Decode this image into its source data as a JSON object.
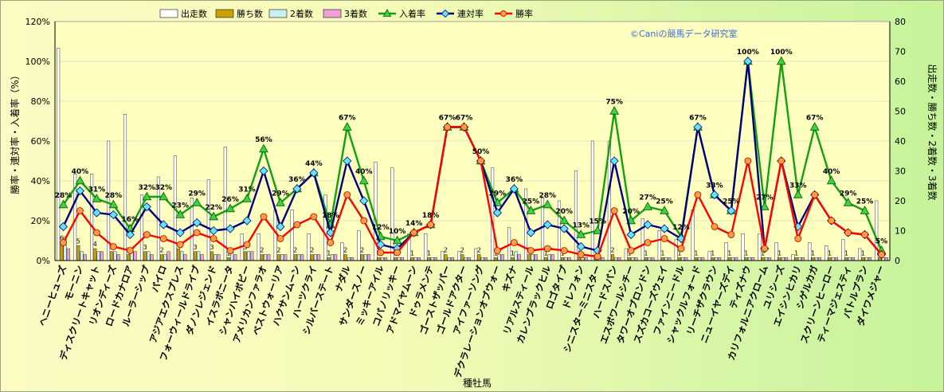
{
  "chart_data": {
    "type": "bar",
    "credit": "©Caniの競馬データ研究室",
    "xlabel": "種牡馬",
    "ylabel_left": "勝率・連対率・入着率（%）",
    "ylabel_right": "出走数・勝ち数・2着数・3着数",
    "ylim_left": [
      0,
      120
    ],
    "ylim_right": [
      0,
      80
    ],
    "yticks_left": [
      "0%",
      "20%",
      "40%",
      "60%",
      "80%",
      "100%",
      "120%"
    ],
    "yticks_right": [
      "0",
      "10",
      "20",
      "30",
      "40",
      "50",
      "60",
      "70",
      "80"
    ],
    "legend": [
      "出走数",
      "勝ち数",
      "2着数",
      "3着数",
      "入着率",
      "連対率",
      "勝率"
    ],
    "colors": {
      "出走数": "#ffffff",
      "勝ち数": "#c8a000",
      "2着数": "#c8f0f0",
      "3着数": "#f0a0d8",
      "入着率": "#10a010",
      "連対率": "#000080",
      "勝率": "#ff0000",
      "plot_bg": "#ffffc0"
    },
    "categories": [
      "ヘニーヒューズ",
      "モーニン",
      "ディスクリートキャット",
      "リオンディーズ",
      "ロードカナロア",
      "ルーラーシップ",
      "パイロ",
      "アジアエクスプレス",
      "フォーウィールドライブ",
      "ダノンレジェンド",
      "イスラボニータ",
      "シャンハイボビー",
      "アメリカンファラオ",
      "ベストウォーリア",
      "ハクサンムーン",
      "ハーツクライ",
      "シルバーステート",
      "ナダル",
      "サンダースノー",
      "ミッキーアイル",
      "コパノリッキー",
      "アドマイヤムーン",
      "ドゥラメンテ",
      "ゴーストザッパー",
      "ゴールドアクター",
      "アイファーソング",
      "デクラレーションオブウォー",
      "キズナ",
      "リアルスティール",
      "カレンブラックヒル",
      "ロゴタイプ",
      "ドレフォン",
      "シニスターミニスター",
      "ハードスパン",
      "エスポワールシチー",
      "タワーオブロンドン",
      "スズカコーズウェイ",
      "ファインニードル",
      "シャックルフォード",
      "リーチザクラウン",
      "ニューイヤーズデイ",
      "ティズナウ",
      "カリフォルニアクローム",
      "ユリシーズ",
      "エイシンヒカリ",
      "シゲルカガ",
      "スクリーンヒーロー",
      "ティーマジェスティ",
      "バトルプラン",
      "ダイワメジャー"
    ],
    "series": [
      {
        "name": "出走数",
        "axis": "right",
        "values": [
          71,
          29,
          29,
          40,
          49,
          22,
          28,
          35,
          21,
          27,
          38,
          9,
          9,
          17,
          17,
          9,
          22,
          6,
          10,
          33,
          31,
          9,
          9,
          3,
          3,
          4,
          31,
          11,
          24,
          21,
          20,
          30,
          40,
          40,
          4,
          14,
          10,
          7,
          17,
          3,
          6,
          9,
          9,
          6,
          2,
          6,
          5,
          7,
          4,
          20
        ]
      },
      {
        "name": "勝ち数",
        "axis": "right",
        "values": [
          6,
          5,
          4,
          3,
          2,
          3,
          2,
          4,
          3,
          3,
          1,
          3,
          2,
          2,
          2,
          2,
          1,
          2,
          2,
          1,
          1,
          1,
          1,
          2,
          2,
          2,
          1,
          1,
          2,
          1,
          1,
          1,
          1,
          2,
          1,
          1,
          1,
          1,
          1,
          1,
          1,
          1,
          1,
          1,
          1,
          1,
          1,
          1,
          1,
          1
        ]
      },
      {
        "name": "2着数",
        "axis": "right",
        "values": [
          8,
          3,
          3,
          3,
          3,
          3,
          2,
          3,
          3,
          2,
          4,
          3,
          2,
          2,
          2,
          2,
          2,
          1,
          2,
          1,
          1,
          1,
          1,
          1,
          1,
          1,
          2,
          3,
          2,
          2,
          1,
          1,
          1,
          1,
          1,
          1,
          1,
          1,
          1,
          1,
          1,
          1,
          1,
          1,
          1,
          1,
          1,
          1,
          1,
          1
        ]
      },
      {
        "name": "3着数",
        "axis": "right",
        "values": [
          4,
          2,
          3,
          2,
          3,
          2,
          3,
          2,
          2,
          2,
          2,
          3,
          2,
          2,
          2,
          2,
          2,
          1,
          2,
          1,
          1,
          1,
          1,
          1,
          1,
          1,
          2,
          2,
          2,
          2,
          1,
          1,
          1,
          1,
          1,
          1,
          1,
          1,
          1,
          1,
          1,
          1,
          1,
          1,
          1,
          1,
          1,
          1,
          1,
          1
        ]
      },
      {
        "name": "入着率",
        "axis": "left",
        "type": "line",
        "values": [
          28,
          40,
          31,
          28,
          16,
          32,
          32,
          23,
          29,
          22,
          26,
          31,
          56,
          29,
          36,
          44,
          18,
          67,
          40,
          12,
          10,
          14,
          18,
          67,
          67,
          50,
          29,
          36,
          25,
          28,
          20,
          13,
          15,
          75,
          20,
          27,
          25,
          12,
          67,
          33,
          25,
          100,
          27,
          100,
          33,
          67,
          40,
          29,
          25,
          5
        ]
      },
      {
        "name": "連対率",
        "axis": "left",
        "type": "line",
        "values": [
          17,
          35,
          24,
          23,
          13,
          27,
          18,
          14,
          19,
          15,
          16,
          20,
          45,
          17,
          36,
          44,
          14,
          50,
          30,
          8,
          6,
          14,
          18,
          67,
          67,
          50,
          24,
          36,
          14,
          18,
          16,
          7,
          5,
          50,
          13,
          18,
          16,
          11,
          67,
          33,
          25,
          100,
          6,
          50,
          17,
          33,
          20,
          14,
          13,
          3
        ]
      },
      {
        "name": "勝率",
        "axis": "left",
        "type": "line",
        "values": [
          9,
          25,
          14,
          7,
          5,
          13,
          11,
          8,
          14,
          11,
          5,
          8,
          22,
          11,
          18,
          22,
          9,
          33,
          20,
          4,
          4,
          14,
          18,
          67,
          67,
          50,
          5,
          9,
          5,
          6,
          5,
          3,
          2,
          25,
          5,
          9,
          11,
          6,
          33,
          17,
          13,
          50,
          6,
          50,
          11,
          33,
          20,
          14,
          13,
          3
        ]
      }
    ],
    "point_labels": [
      {
        "index": 0,
        "text": "28%"
      },
      {
        "index": 1,
        "text": "40%"
      },
      {
        "index": 2,
        "text": "31%"
      },
      {
        "index": 3,
        "text": "28%"
      },
      {
        "index": 4,
        "text": "16%"
      },
      {
        "index": 5,
        "text": "32%"
      },
      {
        "index": 6,
        "text": "32%"
      },
      {
        "index": 7,
        "text": "23%"
      },
      {
        "index": 8,
        "text": "29%"
      },
      {
        "index": 9,
        "text": "22%"
      },
      {
        "index": 10,
        "text": "26%"
      },
      {
        "index": 11,
        "text": "31%"
      },
      {
        "index": 12,
        "text": "56%"
      },
      {
        "index": 13,
        "text": "29%"
      },
      {
        "index": 14,
        "text": "36%"
      },
      {
        "index": 15,
        "text": "44%"
      },
      {
        "index": 16,
        "text": "18%"
      },
      {
        "index": 17,
        "text": "67%"
      },
      {
        "index": 18,
        "text": "40%"
      },
      {
        "index": 19,
        "text": "12%"
      },
      {
        "index": 20,
        "text": "10%"
      },
      {
        "index": 21,
        "text": "14%"
      },
      {
        "index": 22,
        "text": "18%"
      },
      {
        "index": 23,
        "text": "67%"
      },
      {
        "index": 24,
        "text": "67%"
      },
      {
        "index": 25,
        "text": "50%"
      },
      {
        "index": 26,
        "text": "29%"
      },
      {
        "index": 27,
        "text": "36%"
      },
      {
        "index": 28,
        "text": "25%"
      },
      {
        "index": 29,
        "text": "28%"
      },
      {
        "index": 30,
        "text": "20%"
      },
      {
        "index": 31,
        "text": "13%"
      },
      {
        "index": 32,
        "text": "15%"
      },
      {
        "index": 33,
        "text": "75%"
      },
      {
        "index": 34,
        "text": "20%"
      },
      {
        "index": 35,
        "text": "27%"
      },
      {
        "index": 36,
        "text": "25%"
      },
      {
        "index": 37,
        "text": "12%"
      },
      {
        "index": 38,
        "text": "67%"
      },
      {
        "index": 39,
        "text": "33%"
      },
      {
        "index": 40,
        "text": "25%"
      },
      {
        "index": 41,
        "text": "100%"
      },
      {
        "index": 42,
        "text": "27%"
      },
      {
        "index": 43,
        "text": "100%"
      },
      {
        "index": 44,
        "text": "33%"
      },
      {
        "index": 45,
        "text": "67%"
      },
      {
        "index": 46,
        "text": "40%"
      },
      {
        "index": 47,
        "text": "29%"
      },
      {
        "index": 48,
        "text": "25%"
      },
      {
        "index": 49,
        "text": "5%"
      }
    ]
  }
}
